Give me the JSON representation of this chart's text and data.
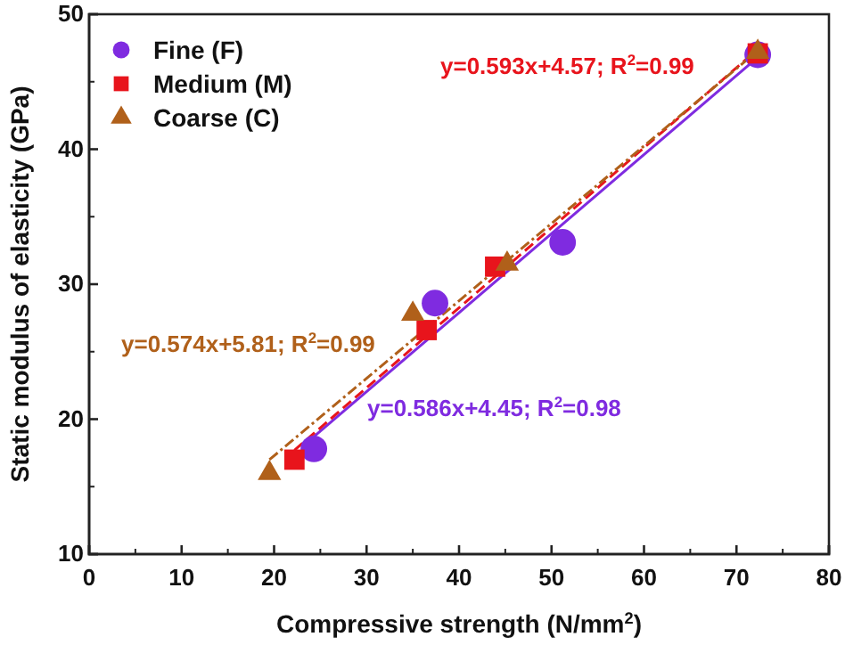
{
  "chart_data": {
    "type": "scatter",
    "xlabel": "Compressive strength (N/mm$^{2}$)",
    "ylabel": "Static modulus of elasticity (GPa)",
    "xlim": [
      0,
      80
    ],
    "xticks": [
      0,
      10,
      20,
      30,
      40,
      50,
      60,
      70,
      80
    ],
    "ylim": [
      10,
      50
    ],
    "yticks": [
      10,
      20,
      30,
      40,
      50
    ],
    "grid": false,
    "legend": "top left",
    "series": [
      {
        "name": "Fine (F)",
        "color": "#7f2be0",
        "marker": "circle",
        "x": [
          24.3,
          37.4,
          51.2,
          72.3
        ],
        "values": [
          17.8,
          28.6,
          33.1,
          47.0
        ]
      },
      {
        "name": "Medium (M)",
        "color": "#e8141c",
        "marker": "square",
        "x": [
          22.2,
          36.5,
          43.9,
          72.3
        ],
        "values": [
          17.0,
          26.6,
          31.3,
          47.1
        ]
      },
      {
        "name": "Coarse (C)",
        "color": "#b0601a",
        "marker": "triangle",
        "x": [
          19.5,
          35.0,
          45.2,
          72.3
        ],
        "values": [
          16.0,
          27.8,
          31.5,
          47.2
        ]
      },
      {
        "type": "line",
        "color": "#7f2be0",
        "line_style": "solid",
        "x": [
          24.3,
          72.3
        ],
        "values": [
          18.7,
          46.8
        ]
      },
      {
        "type": "line",
        "color": "#e8141c",
        "line_style": "dashed",
        "x": [
          22.2,
          72.3
        ],
        "values": [
          17.7,
          47.4
        ]
      },
      {
        "type": "line",
        "color": "#b0601a",
        "line_style": "dotted",
        "x": [
          19.5,
          72.3
        ],
        "values": [
          17.0,
          47.3
        ]
      }
    ],
    "annotations": [
      "y=0.586x+4.45; R$^{2}$=0.98",
      "y=0.593x+4.57; R$^{2}$=0.99",
      "y=0.574x+5.81; R$^{2}$=0.99"
    ]
  }
}
